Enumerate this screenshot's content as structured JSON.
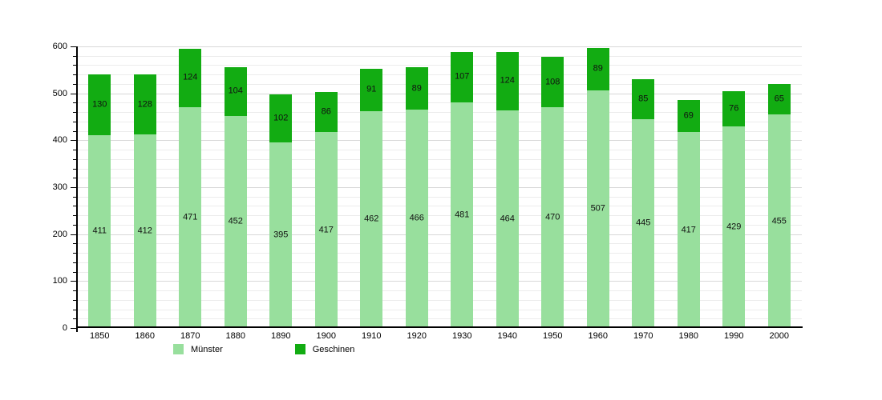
{
  "chart_data": {
    "type": "bar",
    "stacked": true,
    "orientation": "vertical",
    "categories": [
      "1850",
      "1860",
      "1870",
      "1880",
      "1890",
      "1900",
      "1910",
      "1920",
      "1930",
      "1940",
      "1950",
      "1960",
      "1970",
      "1980",
      "1990",
      "2000"
    ],
    "series": [
      {
        "name": "Münster",
        "color": "#98df9d",
        "values": [
          411,
          412,
          471,
          452,
          395,
          417,
          462,
          466,
          481,
          464,
          470,
          507,
          445,
          417,
          429,
          455
        ]
      },
      {
        "name": "Geschinen",
        "color": "#12ac12",
        "values": [
          130,
          128,
          124,
          104,
          102,
          86,
          91,
          89,
          107,
          124,
          108,
          89,
          85,
          69,
          76,
          65
        ]
      }
    ],
    "bar_value_labels": true,
    "ylim": [
      0,
      600
    ],
    "y_major_ticks": [
      0,
      100,
      200,
      300,
      400,
      500,
      600
    ],
    "y_minor_step": 20,
    "grid": "horizontal",
    "legend_position": "bottom"
  },
  "legend": {
    "items": [
      {
        "label": "Münster",
        "color": "#98df9d"
      },
      {
        "label": "Geschinen",
        "color": "#12ac12"
      }
    ]
  }
}
